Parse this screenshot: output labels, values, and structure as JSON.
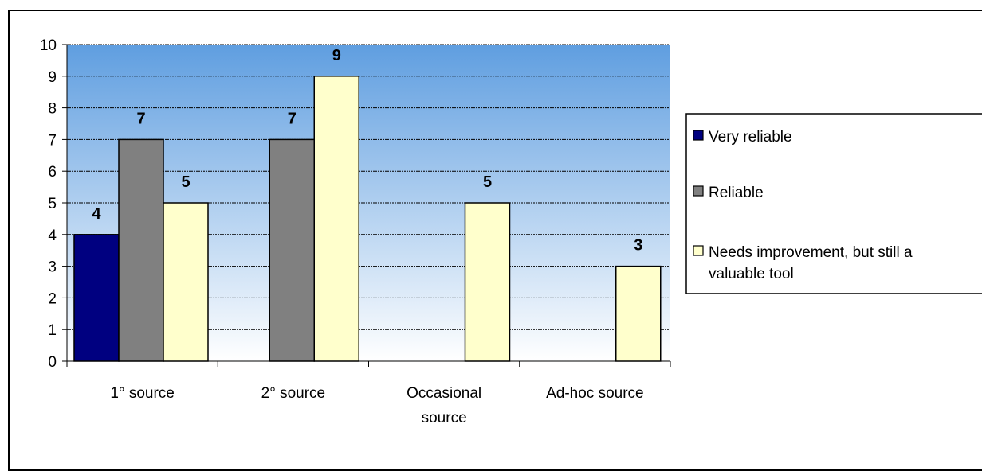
{
  "chart_data": {
    "type": "bar",
    "categories": [
      [
        "1° source"
      ],
      [
        "2° source"
      ],
      [
        "Occasional",
        "source"
      ],
      [
        "Ad-hoc source"
      ]
    ],
    "series": [
      {
        "name": "Very reliable",
        "values": [
          4,
          null,
          null,
          null
        ],
        "color": "#000080"
      },
      {
        "name": "Reliable",
        "values": [
          7,
          7,
          null,
          null
        ],
        "color": "#808080"
      },
      {
        "name": "Needs improvement, but still a valuable tool",
        "values": [
          5,
          9,
          5,
          3
        ],
        "color": "#ffffcc"
      }
    ],
    "legend_lines": [
      [
        "Very reliable"
      ],
      [
        "Reliable"
      ],
      [
        "Needs improvement, but still a",
        "valuable tool"
      ]
    ],
    "ylim": [
      0,
      10
    ],
    "yticks": [
      0,
      1,
      2,
      3,
      4,
      5,
      6,
      7,
      8,
      9,
      10
    ],
    "grid": true,
    "legend_position": "right",
    "plot_background": [
      "#5f9ee0",
      "#ffffff"
    ]
  }
}
